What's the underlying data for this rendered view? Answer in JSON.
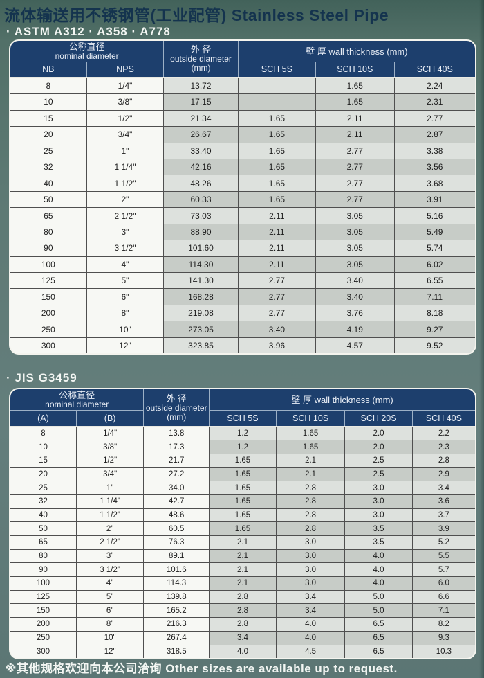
{
  "page": {
    "title": "流体输送用不锈钢管(工业配管) Stainless Steel Pipe",
    "footer": "※其他规格欢迎向本公司洽询  Other sizes are available up to request."
  },
  "colors": {
    "background_teal": "#5d7973",
    "header_navy": "#1d3f6d",
    "header_text": "#e9eef6",
    "row_light": "#dde1dd",
    "row_dark": "#c7ccc7",
    "cell_white": "#f7f8f4",
    "title_text": "#14334e"
  },
  "table1": {
    "standards_label": "· ASTM A312   · A358   · A778",
    "header": {
      "nominal_zh": "公称直径",
      "nominal_en": "nominal diameter",
      "od_zh": "外 径",
      "od_en": "outside diameter",
      "od_unit": "(mm)",
      "wall": "壁 厚 wall thickness  (mm)",
      "col_a": "NB",
      "col_b": "NPS",
      "sch": [
        "SCH 5S",
        "SCH 10S",
        "SCH 40S"
      ]
    },
    "rows": [
      [
        "8",
        "1/4\"",
        "13.72",
        "",
        "1.65",
        "2.24"
      ],
      [
        "10",
        "3/8\"",
        "17.15",
        "",
        "1.65",
        "2.31"
      ],
      [
        "15",
        "1/2\"",
        "21.34",
        "1.65",
        "2.11",
        "2.77"
      ],
      [
        "20",
        "3/4\"",
        "26.67",
        "1.65",
        "2.11",
        "2.87"
      ],
      [
        "25",
        "1\"",
        "33.40",
        "1.65",
        "2.77",
        "3.38"
      ],
      [
        "32",
        "1 1/4\"",
        "42.16",
        "1.65",
        "2.77",
        "3.56"
      ],
      [
        "40",
        "1 1/2\"",
        "48.26",
        "1.65",
        "2.77",
        "3.68"
      ],
      [
        "50",
        "2\"",
        "60.33",
        "1.65",
        "2.77",
        "3.91"
      ],
      [
        "65",
        "2 1/2\"",
        "73.03",
        "2.11",
        "3.05",
        "5.16"
      ],
      [
        "80",
        "3\"",
        "88.90",
        "2.11",
        "3.05",
        "5.49"
      ],
      [
        "90",
        "3 1/2\"",
        "101.60",
        "2.11",
        "3.05",
        "5.74"
      ],
      [
        "100",
        "4\"",
        "114.30",
        "2.11",
        "3.05",
        "6.02"
      ],
      [
        "125",
        "5\"",
        "141.30",
        "2.77",
        "3.40",
        "6.55"
      ],
      [
        "150",
        "6\"",
        "168.28",
        "2.77",
        "3.40",
        "7.11"
      ],
      [
        "200",
        "8\"",
        "219.08",
        "2.77",
        "3.76",
        "8.18"
      ],
      [
        "250",
        "10\"",
        "273.05",
        "3.40",
        "4.19",
        "9.27"
      ],
      [
        "300",
        "12\"",
        "323.85",
        "3.96",
        "4.57",
        "9.52"
      ]
    ]
  },
  "table2": {
    "standards_label": "· JIS  G3459",
    "header": {
      "nominal_zh": "公称直径",
      "nominal_en": "nominal diameter",
      "od_zh": "外 径",
      "od_en": "outside diameter",
      "od_unit": "(mm)",
      "wall": "壁 厚 wall thickness  (mm)",
      "col_a": "(A)",
      "col_b": "(B)",
      "sch": [
        "SCH 5S",
        "SCH 10S",
        "SCH 20S",
        "SCH 40S"
      ]
    },
    "rows": [
      [
        "8",
        "1/4\"",
        "13.8",
        "1.2",
        "1.65",
        "2.0",
        "2.2"
      ],
      [
        "10",
        "3/8\"",
        "17.3",
        "1.2",
        "1.65",
        "2.0",
        "2.3"
      ],
      [
        "15",
        "1/2\"",
        "21.7",
        "1.65",
        "2.1",
        "2.5",
        "2.8"
      ],
      [
        "20",
        "3/4\"",
        "27.2",
        "1.65",
        "2.1",
        "2.5",
        "2.9"
      ],
      [
        "25",
        "1\"",
        "34.0",
        "1.65",
        "2.8",
        "3.0",
        "3.4"
      ],
      [
        "32",
        "1 1/4\"",
        "42.7",
        "1.65",
        "2.8",
        "3.0",
        "3.6"
      ],
      [
        "40",
        "1 1/2\"",
        "48.6",
        "1.65",
        "2.8",
        "3.0",
        "3.7"
      ],
      [
        "50",
        "2\"",
        "60.5",
        "1.65",
        "2.8",
        "3.5",
        "3.9"
      ],
      [
        "65",
        "2 1/2\"",
        "76.3",
        "2.1",
        "3.0",
        "3.5",
        "5.2"
      ],
      [
        "80",
        "3\"",
        "89.1",
        "2.1",
        "3.0",
        "4.0",
        "5.5"
      ],
      [
        "90",
        "3 1/2\"",
        "101.6",
        "2.1",
        "3.0",
        "4.0",
        "5.7"
      ],
      [
        "100",
        "4\"",
        "114.3",
        "2.1",
        "3.0",
        "4.0",
        "6.0"
      ],
      [
        "125",
        "5\"",
        "139.8",
        "2.8",
        "3.4",
        "5.0",
        "6.6"
      ],
      [
        "150",
        "6\"",
        "165.2",
        "2.8",
        "3.4",
        "5.0",
        "7.1"
      ],
      [
        "200",
        "8\"",
        "216.3",
        "2.8",
        "4.0",
        "6.5",
        "8.2"
      ],
      [
        "250",
        "10\"",
        "267.4",
        "3.4",
        "4.0",
        "6.5",
        "9.3"
      ],
      [
        "300",
        "12\"",
        "318.5",
        "4.0",
        "4.5",
        "6.5",
        "10.3"
      ]
    ]
  }
}
